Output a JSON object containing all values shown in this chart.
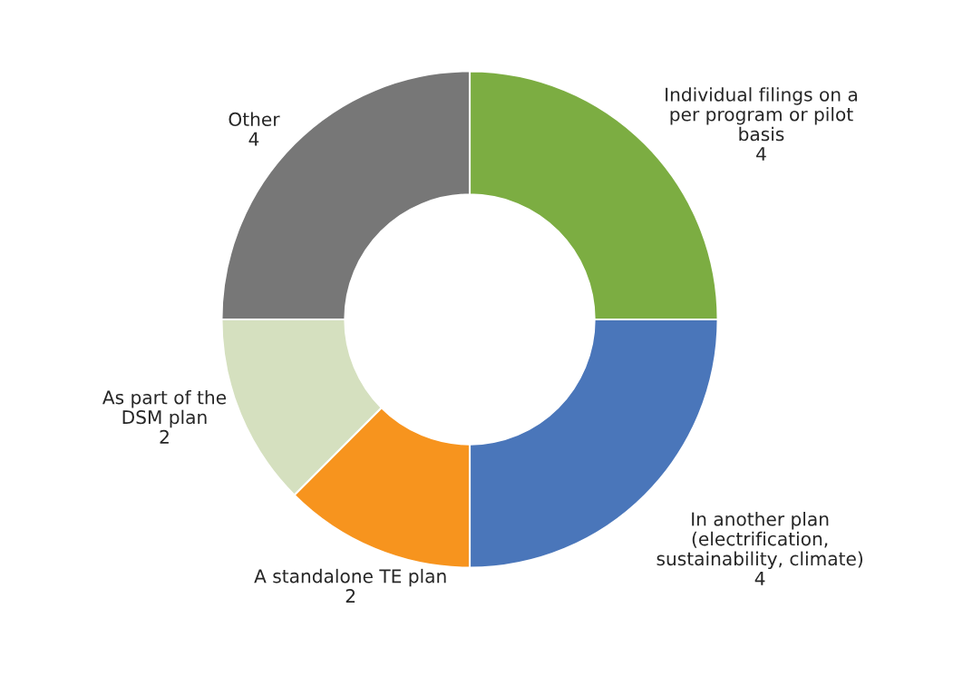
{
  "chart_data": {
    "type": "donut",
    "categories": [
      "Individual filings on a\nper program or pilot\nbasis",
      "In another plan\n(electrification,\nsustainability, climate)",
      "A standalone TE plan",
      "As part of the\nDSM plan",
      "Other"
    ],
    "values": [
      4,
      4,
      2,
      2,
      4
    ],
    "colors": [
      "#7cad42",
      "#4a76ba",
      "#f7941e",
      "#d5e0bf",
      "#777777"
    ],
    "data_labels": true
  }
}
